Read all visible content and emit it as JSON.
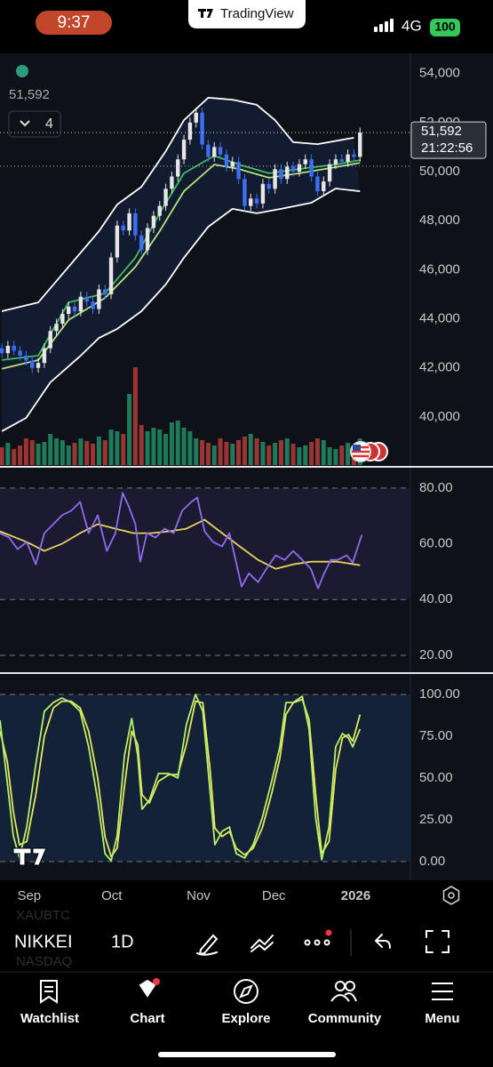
{
  "status_bar": {
    "time": "9:37",
    "app": "TradingView",
    "network": "4G",
    "battery": "100"
  },
  "chart_data": [
    {
      "type": "candlestick",
      "open": [
        42800,
        42600,
        42900,
        42700,
        42500,
        42300,
        42000,
        42200,
        42800,
        43500,
        43800,
        44200,
        44500,
        44300,
        44900,
        44700,
        44400,
        45200,
        45000,
        46500,
        47800,
        47600,
        48300,
        47400,
        46800,
        47700,
        48200,
        48600,
        49300,
        49800,
        50500,
        51300,
        52000,
        52400,
        51100,
        50600,
        51000,
        50700,
        50200,
        50400,
        49700,
        48600,
        48900,
        48700,
        49500,
        49300,
        50100,
        49700,
        50200,
        50000,
        50300,
        50500,
        49800,
        49200,
        49600,
        50300,
        50500,
        50400,
        50700,
        50600
      ],
      "high": [
        43000,
        43100,
        43100,
        42900,
        42700,
        42500,
        42400,
        43000,
        43700,
        44000,
        44400,
        44700,
        44700,
        45100,
        45100,
        44900,
        45400,
        45400,
        46700,
        48000,
        48000,
        48500,
        48500,
        47600,
        47900,
        48400,
        48800,
        49500,
        50000,
        50700,
        51500,
        52200,
        52600,
        52600,
        51300,
        51200,
        51200,
        50900,
        50600,
        50600,
        49900,
        49100,
        49100,
        49700,
        49700,
        50300,
        50300,
        50400,
        50400,
        50500,
        50700,
        50700,
        50000,
        49800,
        50500,
        50700,
        50700,
        50900,
        50900,
        51792
      ],
      "low": [
        42400,
        42400,
        42500,
        42300,
        42100,
        41800,
        41800,
        42000,
        42600,
        43300,
        43600,
        44000,
        44100,
        44100,
        44500,
        44200,
        44200,
        44800,
        44800,
        46300,
        47400,
        47400,
        47200,
        46600,
        46600,
        47500,
        48000,
        48400,
        49100,
        49600,
        50300,
        51100,
        51800,
        50900,
        50400,
        50400,
        50500,
        50000,
        50000,
        49500,
        48400,
        48400,
        48500,
        48500,
        49100,
        49100,
        49500,
        49500,
        49800,
        49800,
        50100,
        49600,
        49000,
        49000,
        49400,
        50100,
        50200,
        50200,
        50400,
        50400
      ],
      "close": [
        42600,
        42900,
        42700,
        42500,
        42300,
        42000,
        42200,
        42800,
        43500,
        43800,
        44200,
        44500,
        44300,
        44900,
        44700,
        44400,
        45200,
        45000,
        46500,
        47800,
        47600,
        48300,
        47400,
        46800,
        47700,
        48200,
        48600,
        49300,
        49800,
        50500,
        51300,
        52000,
        52400,
        51100,
        50600,
        51000,
        50700,
        50200,
        50400,
        49700,
        48600,
        48900,
        48700,
        49500,
        49300,
        50100,
        49700,
        50200,
        50000,
        50300,
        50500,
        49800,
        49200,
        49600,
        50300,
        50500,
        50400,
        50700,
        50600,
        51592
      ],
      "up_color": "#e6e6e6",
      "down_color": "#3b6ff5",
      "xlim": [
        -0.3,
        67.3
      ],
      "xticks": [
        {
          "value": 4.5,
          "label": "Sep"
        },
        {
          "value": 18.1,
          "label": "Oct"
        },
        {
          "value": 32.4,
          "label": "Nov"
        },
        {
          "value": 44.8,
          "label": "Dec"
        },
        {
          "value": 58.3,
          "label": "2026"
        }
      ],
      "ylim": [
        38040,
        54820
      ],
      "yticks": [
        {
          "value": 54000,
          "label": "54,000"
        },
        {
          "value": 52000,
          "label": "52,000"
        },
        {
          "value": 50000,
          "label": "50,000"
        },
        {
          "value": 48000,
          "label": "48,000"
        },
        {
          "value": 46000,
          "label": "46,000"
        },
        {
          "value": 44000,
          "label": "44,000"
        },
        {
          "value": 42000,
          "label": "42,000"
        },
        {
          "value": 40000,
          "label": "40,000"
        }
      ],
      "bollinger": [
        {
          "color": "#ffffff",
          "x": [
            0,
            6,
            11,
            16,
            19,
            23,
            27,
            30,
            34,
            38,
            42,
            45,
            48,
            52,
            58
          ],
          "values": [
            44310,
            44670,
            46120,
            47570,
            48660,
            49380,
            50830,
            52100,
            53010,
            52930,
            52720,
            52100,
            51200,
            51120,
            51380
          ]
        },
        {
          "color": "#ffffff",
          "x": [
            0,
            4,
            8,
            13,
            16,
            19,
            23,
            27,
            30,
            34,
            38,
            42,
            46,
            51,
            55,
            59
          ],
          "values": [
            39420,
            39960,
            41410,
            42500,
            43220,
            43590,
            44310,
            45400,
            46490,
            47750,
            48480,
            48300,
            48480,
            48730,
            49310,
            49200
          ]
        }
      ],
      "moving_averages": [
        {
          "color": "#3fbf5a",
          "x": [
            0,
            6,
            11,
            17,
            22,
            26,
            30,
            35,
            39,
            44,
            49,
            55,
            59
          ],
          "values": [
            42320,
            42500,
            44670,
            45040,
            46490,
            48300,
            49930,
            50650,
            50290,
            49930,
            50110,
            50290,
            50470
          ]
        },
        {
          "color": "#b6e37a",
          "x": [
            0,
            6,
            11,
            17,
            22,
            26,
            30,
            35,
            39,
            44,
            49,
            55,
            59
          ],
          "values": [
            41960,
            42320,
            43950,
            44850,
            46120,
            47570,
            49200,
            50290,
            50110,
            49750,
            49930,
            50180,
            50360
          ]
        }
      ],
      "volume": {
        "values": [
          20,
          25,
          18,
          22,
          30,
          28,
          24,
          26,
          35,
          30,
          28,
          22,
          25,
          30,
          27,
          24,
          32,
          28,
          40,
          38,
          35,
          80,
          110,
          45,
          38,
          42,
          40,
          35,
          48,
          50,
          42,
          38,
          30,
          28,
          25,
          22,
          30,
          26,
          24,
          28,
          32,
          35,
          30,
          26,
          22,
          25,
          28,
          30,
          24,
          20,
          22,
          26,
          30,
          28,
          20,
          18,
          22,
          25,
          20,
          30
        ],
        "ylim": [
          0,
          120
        ],
        "up_color": "#1f7a5a",
        "down_color": "#9c3434"
      },
      "last_price": {
        "value": 51592,
        "label": "51,592",
        "countdown": "21:22:56"
      },
      "reference_price": 50220,
      "indicator_count": 4
    },
    {
      "type": "line",
      "ylim": [
        13.6,
        87.0
      ],
      "yticks": [
        {
          "value": 80,
          "label": "80.00"
        },
        {
          "value": 60,
          "label": "60.00"
        },
        {
          "value": 40,
          "label": "40.00"
        },
        {
          "value": 20,
          "label": "20.00"
        }
      ],
      "levels": [
        80,
        40,
        20
      ],
      "band_color": "#1c1a30",
      "series": [
        {
          "color": "#8e6cf0",
          "x": [
            -0.3,
            1.2,
            2.6,
            4.1,
            5.6,
            7.0,
            8.5,
            9.9,
            11.4,
            12.9,
            14.3,
            15.8,
            17.3,
            18.7,
            19.9,
            20.9,
            22.0,
            22.8,
            23.9,
            25.3,
            26.8,
            28.3,
            29.7,
            31.2,
            32.2,
            33.4,
            34.8,
            36.3,
            37.5,
            38.5,
            39.5,
            40.7,
            42.2,
            43.6,
            45.1,
            46.6,
            48.0,
            49.5,
            50.9,
            52.1,
            53.1,
            54.2,
            55.3,
            56.8,
            57.8,
            59.3
          ],
          "values": [
            63.84,
            62.24,
            58.08,
            60.64,
            52.64,
            63.84,
            67.04,
            70.24,
            71.84,
            75.04,
            63.84,
            70.24,
            57.44,
            63.84,
            78.24,
            73.44,
            67.04,
            53.6,
            63.84,
            62.24,
            65.44,
            63.84,
            71.84,
            75.04,
            76.64,
            64.48,
            60.64,
            59.04,
            63.84,
            54.24,
            44.64,
            49.44,
            46.24,
            51.04,
            55.84,
            54.24,
            57.44,
            54.24,
            51.04,
            44,
            49.44,
            54.24,
            54.24,
            55.84,
            53.28,
            63.2
          ]
        },
        {
          "color": "#e8d45a",
          "x": [
            -0.3,
            4.1,
            7.0,
            9.9,
            12.9,
            15.8,
            18.7,
            21.7,
            24.6,
            27.5,
            30.4,
            33.4,
            36.3,
            39.2,
            42.2,
            45.1,
            48.0,
            50.9,
            55.3,
            59.0
          ],
          "values": [
            64.48,
            60.64,
            57.44,
            60,
            63.84,
            67.04,
            65.44,
            63.84,
            63.84,
            64.48,
            65.44,
            68.64,
            63.84,
            59.04,
            54.24,
            51.04,
            52.64,
            53.6,
            53.6,
            52.32
          ]
        }
      ]
    },
    {
      "type": "line",
      "ylim": [
        -11.2,
        111.2
      ],
      "yticks": [
        {
          "value": 100,
          "label": "100.00"
        },
        {
          "value": 75,
          "label": "75.00"
        },
        {
          "value": 50,
          "label": "50.00"
        },
        {
          "value": 25,
          "label": "25.00"
        },
        {
          "value": 0,
          "label": "0.00"
        }
      ],
      "levels": [
        100,
        0
      ],
      "band_color": "#132236",
      "series": [
        {
          "color": "#b6f26b",
          "x": [
            -0.3,
            0.9,
            1.9,
            2.9,
            4.1,
            5.6,
            7.0,
            8.5,
            9.9,
            11.4,
            12.9,
            14.3,
            15.8,
            17.0,
            18.0,
            19.0,
            20.2,
            21.4,
            22.4,
            23.1,
            24.3,
            25.8,
            27.5,
            29.0,
            30.4,
            31.9,
            33.1,
            34.3,
            35.1,
            36.3,
            37.5,
            38.6,
            40.0,
            41.4,
            42.9,
            44.4,
            45.8,
            46.8,
            48.0,
            49.5,
            50.6,
            51.7,
            52.7,
            53.9,
            55.0,
            56.1,
            57.1,
            57.8,
            59.0
          ],
          "values": [
            84.6,
            47.3,
            15.4,
            2.1,
            20.7,
            58,
            89.9,
            95.2,
            97.9,
            95.2,
            89.9,
            68.6,
            36.7,
            4.8,
            0.5,
            15.4,
            63.3,
            85.6,
            63.3,
            31.4,
            36.7,
            52.7,
            52.7,
            50,
            81.9,
            100,
            89.9,
            42,
            10.1,
            18.1,
            20.7,
            4.8,
            2.1,
            10.1,
            26.1,
            47.3,
            68.6,
            95.2,
            95.2,
            98.9,
            79.3,
            26.1,
            1.1,
            20.7,
            68.6,
            76.6,
            73.9,
            68.6,
            79.3
          ]
        },
        {
          "color": "#e8e85a",
          "x": [
            -0.3,
            0.9,
            1.9,
            2.9,
            4.1,
            5.6,
            7.0,
            8.5,
            9.9,
            11.4,
            12.9,
            14.3,
            15.8,
            17.0,
            18.0,
            19.0,
            20.2,
            21.4,
            22.4,
            23.1,
            24.3,
            25.8,
            27.5,
            29.0,
            30.4,
            31.9,
            33.1,
            34.3,
            35.1,
            36.3,
            37.5,
            38.6,
            40.0,
            41.4,
            42.9,
            44.4,
            45.8,
            46.8,
            48.0,
            49.5,
            50.6,
            51.7,
            52.7,
            53.9,
            55.0,
            56.1,
            57.1,
            57.8,
            59.0
          ],
          "values": [
            78,
            60,
            30,
            10,
            12,
            40,
            75,
            92,
            96,
            96,
            92,
            78,
            50,
            15,
            3,
            8,
            45,
            78,
            70,
            40,
            35,
            48,
            52,
            52,
            70,
            96,
            95,
            55,
            20,
            15,
            18,
            8,
            4,
            8,
            20,
            40,
            62,
            88,
            95,
            97,
            85,
            40,
            5,
            12,
            55,
            74,
            76,
            72,
            88
          ]
        }
      ]
    }
  ],
  "watermarks": [
    "XAUBTC",
    "NASDAQ"
  ],
  "toolbar": {
    "symbol": "NIKKEI",
    "interval": "1D"
  },
  "tabs": [
    "Watchlist",
    "Chart",
    "Explore",
    "Community",
    "Menu"
  ]
}
